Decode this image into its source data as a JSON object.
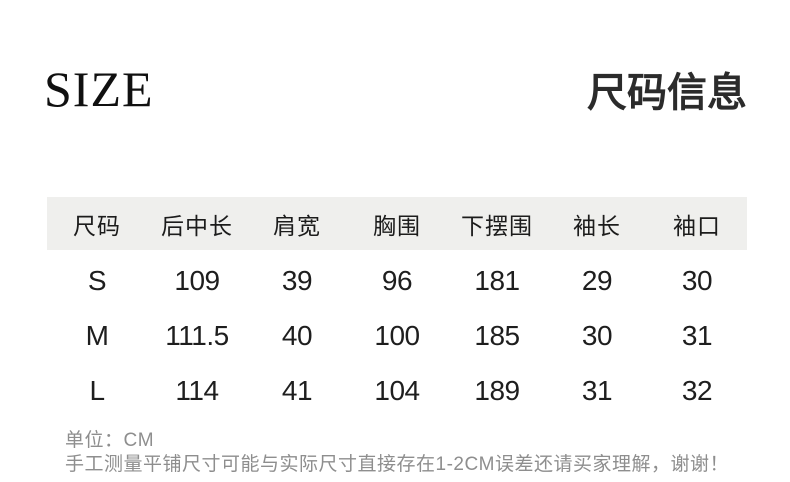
{
  "header": {
    "title_en": "SIZE",
    "title_zh": "尺码信息"
  },
  "size_table": {
    "columns": [
      "尺码",
      "后中长",
      "肩宽",
      "胸围",
      "下摆围",
      "袖长",
      "袖口"
    ],
    "rows": [
      [
        "S",
        "109",
        "39",
        "96",
        "181",
        "29",
        "30"
      ],
      [
        "M",
        "111.5",
        "40",
        "100",
        "185",
        "30",
        "31"
      ],
      [
        "L",
        "114",
        "41",
        "104",
        "189",
        "31",
        "32"
      ]
    ]
  },
  "notes": {
    "unit": "单位：CM",
    "disclaimer": "手工测量平铺尺寸可能与实际尺寸直接存在1-2CM误差还请买家理解，谢谢！"
  },
  "colors": {
    "background": "#ffffff",
    "table_header_bg": "#efefed",
    "text_primary": "#1e1e1e",
    "text_secondary": "#8e8e8e"
  }
}
